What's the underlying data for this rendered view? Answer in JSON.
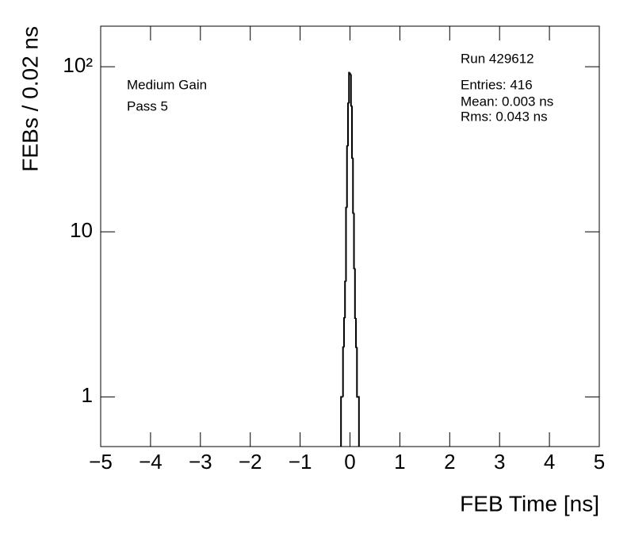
{
  "chart_data": {
    "type": "histogram",
    "xlabel": "FEB Time [ns]",
    "ylabel": "FEBs / 0.02 ns",
    "annotations": [
      "Medium Gain",
      "Pass 5",
      "Run 429612",
      "Entries: 416",
      "Mean: 0.003 ns",
      "Rms: 0.043 ns"
    ],
    "bins": [
      -0.18,
      -0.16,
      -0.14,
      -0.12,
      -0.1,
      -0.08,
      -0.06,
      -0.04,
      -0.02,
      0,
      0.02,
      0.04,
      0.06,
      0.08,
      0.1,
      0.12,
      0.14,
      0.16,
      0.18
    ],
    "values": [
      1,
      1,
      2,
      3,
      5,
      14,
      33,
      60,
      92,
      90,
      58,
      28,
      13,
      6,
      3,
      2,
      1,
      1
    ],
    "color": "#000000",
    "xlim": [
      -5,
      5
    ],
    "xticks": [
      {
        "value": -5,
        "label": "−5"
      },
      {
        "value": -4,
        "label": "−4"
      },
      {
        "value": -3,
        "label": "−3"
      },
      {
        "value": -2,
        "label": "−2"
      },
      {
        "value": -1,
        "label": "−1"
      },
      0,
      1,
      2,
      3,
      4,
      5
    ],
    "ylim": [
      0.5,
      176
    ],
    "yticks": [
      1,
      10,
      {
        "value": 100,
        "label": "10²"
      }
    ],
    "log_y": true
  }
}
